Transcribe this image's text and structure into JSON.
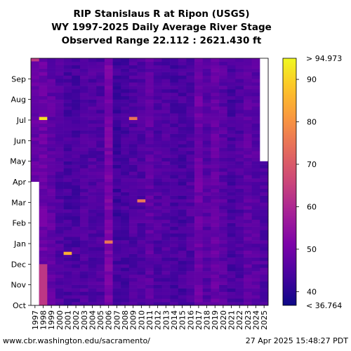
{
  "chart_data": {
    "type": "heatmap",
    "title": [
      "RIP Stanislaus R at Ripon (USGS)",
      "WY 1997-2025 Daily Average River Stage",
      "Observed Range 22.112 : 2621.430 ft"
    ],
    "x_categories": [
      "1997",
      "1998",
      "1999",
      "2000",
      "2001",
      "2002",
      "2003",
      "2004",
      "2005",
      "2006",
      "2007",
      "2008",
      "2009",
      "2010",
      "2011",
      "2012",
      "2013",
      "2014",
      "2015",
      "2016",
      "2017",
      "2018",
      "2019",
      "2020",
      "2021",
      "2022",
      "2023",
      "2024",
      "2025"
    ],
    "y_month_labels": [
      "Oct",
      "Nov",
      "Dec",
      "Jan",
      "Feb",
      "Mar",
      "Apr",
      "May",
      "Jun",
      "Jul",
      "Aug",
      "Sep"
    ],
    "color_scale": {
      "min": 36.764,
      "max": 94.973,
      "ticks": [
        40,
        50,
        60,
        70,
        80,
        90
      ],
      "top_label": "> 94.973",
      "bottom_label": "< 36.764",
      "colormap": "plasma"
    },
    "column_base_values": [
      48,
      49,
      47,
      45,
      44,
      44,
      45,
      45,
      45,
      51,
      43,
      44,
      45,
      45,
      47,
      45,
      45,
      44,
      44,
      45,
      49,
      46,
      48,
      46,
      44,
      45,
      47,
      46,
      45
    ],
    "notable_cells": [
      {
        "year": "1998",
        "period": "Oct-Nov",
        "value": 63
      },
      {
        "year": "1997",
        "period": "late Sep",
        "value": 63
      },
      {
        "year": "1998",
        "period": "early Jul",
        "value": 92
      },
      {
        "year": "2001",
        "period": "mid Dec",
        "value": 85
      },
      {
        "year": "2006",
        "period": "early Jan",
        "value": 75
      },
      {
        "year": "2009",
        "period": "early Jul",
        "value": 75
      },
      {
        "year": "2010",
        "period": "early Mar",
        "value": 75
      }
    ],
    "missing_data": [
      {
        "year": "1997",
        "period": "Oct-Mar"
      },
      {
        "year": "2025",
        "period": "May-Sep"
      }
    ],
    "colors": {
      "missing": "#ffffff",
      "grid_line": "#cccccc"
    }
  },
  "footer": {
    "source": "www.cbr.washington.edu/sacramento/",
    "timestamp": "27 Apr 2025 15:48:27 PDT"
  }
}
